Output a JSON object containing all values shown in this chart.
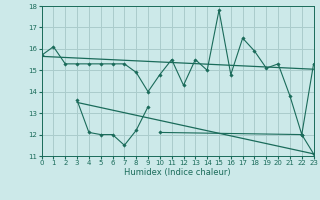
{
  "xlabel": "Humidex (Indice chaleur)",
  "background_color": "#cce9e9",
  "grid_color": "#aacccc",
  "line_color": "#1a6b5a",
  "xlim": [
    0,
    23
  ],
  "ylim": [
    11,
    18
  ],
  "yticks": [
    11,
    12,
    13,
    14,
    15,
    16,
    17,
    18
  ],
  "xticks": [
    0,
    1,
    2,
    3,
    4,
    5,
    6,
    7,
    8,
    9,
    10,
    11,
    12,
    13,
    14,
    15,
    16,
    17,
    18,
    19,
    20,
    21,
    22,
    23
  ],
  "series1_x": [
    0,
    1,
    2,
    3,
    4,
    5,
    6,
    7,
    8,
    9,
    10,
    11,
    12,
    13,
    14,
    15,
    16,
    17,
    18,
    19,
    20,
    21,
    22,
    23
  ],
  "series1_y": [
    15.7,
    16.1,
    15.3,
    15.3,
    15.3,
    15.3,
    15.3,
    15.3,
    14.9,
    14.0,
    14.8,
    15.5,
    14.3,
    15.5,
    15.0,
    17.8,
    14.8,
    16.5,
    15.9,
    15.1,
    15.3,
    13.8,
    12.0,
    15.3
  ],
  "series2_x": [
    3,
    4,
    5,
    6,
    7,
    8,
    9,
    10,
    22,
    23
  ],
  "series2_y": [
    13.6,
    12.1,
    12.0,
    12.0,
    11.5,
    12.2,
    13.3,
    12.1,
    12.0,
    11.1
  ],
  "series2_break": 7,
  "trend1_x": [
    0,
    23
  ],
  "trend1_y": [
    15.65,
    15.05
  ],
  "trend2_x": [
    3,
    23
  ],
  "trend2_y": [
    13.5,
    11.1
  ]
}
